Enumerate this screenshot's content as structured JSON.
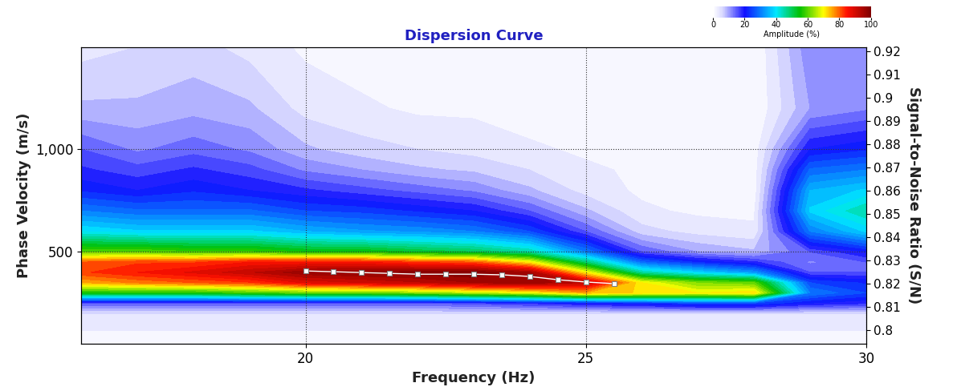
{
  "chart_data": {
    "type": "heatmap",
    "title": "Dispersion Curve",
    "x_label": "Frequency (Hz)",
    "y_label": "Phase Velocity (m/s)",
    "y2_label": "Signal-to-Noise Ratio (S/N)",
    "xlim": [
      16,
      30
    ],
    "xticks": [
      20,
      25,
      30
    ],
    "ylim": [
      50,
      1500
    ],
    "yticks": [
      500,
      {
        "value": 1000,
        "label": "1,000"
      }
    ],
    "y2lim": [
      0.794,
      0.922
    ],
    "y2ticks": [
      0.8,
      0.81,
      0.82,
      0.83,
      0.84,
      0.85,
      0.86,
      0.87,
      0.88,
      0.89,
      0.9,
      0.91,
      0.92
    ],
    "grid": true,
    "heatmap": {
      "x": [
        16,
        17,
        18,
        19,
        20,
        21,
        22,
        23,
        24,
        25,
        26,
        27,
        28,
        29,
        30
      ],
      "y": [
        50,
        100,
        200,
        250,
        300,
        350,
        400,
        450,
        500,
        600,
        700,
        800,
        900,
        1000,
        1200,
        1500
      ],
      "values": [
        [
          1,
          1,
          1,
          1,
          1,
          1,
          1,
          1,
          1,
          1,
          1,
          1,
          1,
          1,
          1
        ],
        [
          2,
          2,
          2,
          2,
          2,
          2,
          2,
          2,
          2,
          2,
          2,
          2,
          2,
          2,
          2
        ],
        [
          5,
          5,
          5,
          5,
          5,
          5,
          5,
          5,
          5,
          5,
          5,
          5,
          5,
          5,
          5
        ],
        [
          15,
          15,
          15,
          15,
          15,
          15,
          15,
          16,
          18,
          20,
          22,
          25,
          25,
          20,
          18
        ],
        [
          55,
          55,
          55,
          58,
          60,
          60,
          62,
          65,
          68,
          75,
          72,
          70,
          72,
          30,
          25
        ],
        [
          75,
          78,
          80,
          82,
          88,
          90,
          92,
          95,
          97,
          92,
          70,
          62,
          60,
          25,
          22
        ],
        [
          82,
          85,
          88,
          92,
          97,
          98,
          99,
          100,
          95,
          70,
          45,
          38,
          32,
          15,
          15
        ],
        [
          80,
          82,
          82,
          85,
          85,
          85,
          82,
          80,
          70,
          48,
          28,
          22,
          18,
          12,
          15
        ],
        [
          60,
          60,
          58,
          58,
          55,
          55,
          52,
          50,
          45,
          30,
          15,
          10,
          8,
          15,
          20
        ],
        [
          40,
          38,
          38,
          38,
          35,
          33,
          32,
          30,
          25,
          15,
          6,
          4,
          3,
          30,
          38
        ],
        [
          30,
          28,
          28,
          28,
          25,
          24,
          22,
          20,
          15,
          8,
          3,
          2,
          2,
          38,
          45
        ],
        [
          22,
          20,
          22,
          20,
          18,
          16,
          14,
          12,
          8,
          4,
          2,
          1,
          1,
          35,
          38
        ],
        [
          18,
          16,
          18,
          16,
          12,
          10,
          8,
          7,
          5,
          3,
          2,
          1,
          1,
          28,
          30
        ],
        [
          15,
          12,
          14,
          12,
          8,
          6,
          5,
          4,
          3,
          2,
          1,
          1,
          1,
          20,
          22
        ],
        [
          8,
          8,
          9,
          8,
          4,
          3,
          2,
          2,
          1,
          1,
          0,
          0,
          0,
          10,
          12
        ],
        [
          4,
          5,
          6,
          4,
          2,
          1,
          1,
          1,
          0,
          0,
          0,
          0,
          0,
          12,
          10
        ]
      ]
    },
    "colorbar": {
      "label": "Amplitude (%)",
      "range": [
        0,
        100
      ],
      "ticks": [
        0,
        20,
        40,
        60,
        80,
        100
      ]
    },
    "series": [
      {
        "type": "line",
        "color": "#ffffff",
        "marker": "square",
        "x": [
          20,
          20.5,
          21,
          21.5,
          22,
          22.5,
          23,
          23.5,
          24,
          24.5,
          25,
          25.5
        ],
        "values": [
          407,
          403,
          399,
          395,
          391,
          391,
          391,
          388,
          380,
          364,
          353,
          345
        ]
      }
    ]
  }
}
